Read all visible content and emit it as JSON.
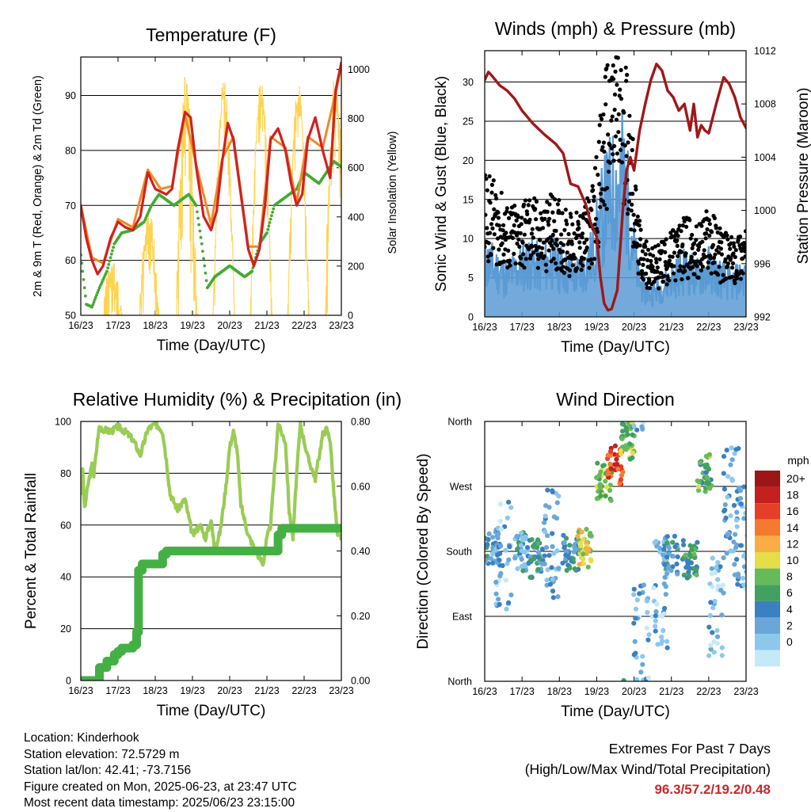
{
  "colors": {
    "temp2m": "#d32020",
    "temp9m": "#f08a24",
    "dewpoint": "#44aa33",
    "solar": "#ffd452",
    "wind": "#5b9bd5",
    "gust": "#000000",
    "pressure": "#a01818",
    "rh": "#99cc55",
    "precip": "#44b044",
    "speed_scale": [
      "#c6e9fa",
      "#8cc8ee",
      "#6aa7d8",
      "#3b80c0",
      "#42a060",
      "#67ba5a",
      "#e4de48",
      "#f9ad44",
      "#f47a30",
      "#e63f28",
      "#c4201f",
      "#9c1616"
    ]
  },
  "chart_data": [
    {
      "id": "temperature",
      "type": "line",
      "title": "Temperature (F)",
      "xlabel": "Time (Day/UTC)",
      "ylabel": "2m & 9m T (Red, Orange) & 2m Td (Green)",
      "y2label": "Solar Insolation (Yellow)",
      "xticks": [
        "16/23",
        "17/23",
        "18/23",
        "19/23",
        "20/23",
        "21/23",
        "22/23",
        "23/23"
      ],
      "xlim": [
        0,
        7
      ],
      "ylim": [
        50,
        97
      ],
      "y2lim": [
        0,
        1050
      ],
      "yticks": [
        50,
        60,
        70,
        80,
        90
      ],
      "y2ticks": [
        0,
        200,
        400,
        600,
        800,
        1000
      ],
      "series": [
        {
          "key": "temp2m",
          "color_key": "temp2m",
          "axis": "left",
          "x": [
            0,
            0.15,
            0.3,
            0.45,
            0.6,
            0.8,
            1.0,
            1.2,
            1.4,
            1.6,
            1.8,
            2.0,
            2.15,
            2.3,
            2.45,
            2.6,
            2.8,
            2.95,
            3.1,
            3.3,
            3.5,
            3.65,
            3.8,
            3.95,
            4.1,
            4.3,
            4.5,
            4.65,
            4.8,
            4.95,
            5.1,
            5.3,
            5.5,
            5.65,
            5.8,
            5.95,
            6.1,
            6.3,
            6.5,
            6.7,
            6.85,
            7.0
          ],
          "y": [
            70,
            64,
            60,
            57.5,
            59,
            64,
            67,
            66,
            65.5,
            68,
            76,
            73,
            72.5,
            72,
            73,
            80,
            87,
            86,
            77,
            68,
            65.5,
            69,
            78,
            85,
            82,
            72,
            62,
            59,
            62,
            70,
            82,
            84,
            80,
            74,
            70,
            72,
            82,
            86,
            80,
            75,
            91,
            96
          ]
        },
        {
          "key": "temp9m",
          "color_key": "temp9m",
          "axis": "left",
          "x": [
            0,
            0.3,
            0.6,
            1.0,
            1.4,
            1.8,
            2.15,
            2.45,
            2.8,
            3.1,
            3.5,
            3.8,
            4.1,
            4.5,
            4.8,
            5.1,
            5.5,
            5.8,
            6.1,
            6.5,
            6.85,
            7.0
          ],
          "y": [
            70,
            60.5,
            59.5,
            67.5,
            66,
            76.5,
            73,
            73.5,
            86.5,
            77.5,
            66.5,
            78.5,
            82.5,
            62.5,
            62.5,
            82.5,
            80.5,
            70.5,
            82.5,
            80.5,
            90.5,
            95.5
          ]
        },
        {
          "key": "dewpoint",
          "color_key": "dewpoint",
          "axis": "left",
          "x": [
            0,
            0.15,
            0.3,
            0.5,
            0.7,
            0.9,
            1.1,
            1.4,
            1.7,
            1.9,
            2.1,
            2.3,
            2.5,
            2.7,
            2.9,
            3.1,
            3.25,
            3.4,
            3.6,
            3.8,
            4.0,
            4.2,
            4.4,
            4.6,
            4.8,
            5.0,
            5.2,
            5.4,
            5.6,
            5.8,
            6.0,
            6.2,
            6.4,
            6.6,
            6.8,
            7.0
          ],
          "y": [
            61,
            52,
            51.5,
            55,
            58,
            63,
            65,
            65.5,
            67,
            70,
            72,
            71,
            70,
            71,
            72,
            70,
            63,
            55,
            57,
            58,
            59,
            58,
            57,
            58,
            63,
            65,
            70,
            71,
            72,
            73,
            76,
            75,
            74,
            76,
            78,
            77
          ]
        },
        {
          "key": "solar",
          "color_key": "solar",
          "axis": "right",
          "days": [
            {
              "start": 0.54,
              "peak": 230,
              "jitter": 140
            },
            {
              "start": 1.54,
              "peak": 420,
              "jitter": 150
            },
            {
              "start": 2.54,
              "peak": 1010,
              "jitter": 300
            },
            {
              "start": 3.54,
              "peak": 960,
              "jitter": 120
            },
            {
              "start": 4.54,
              "peak": 970,
              "jitter": 120
            },
            {
              "start": 5.54,
              "peak": 960,
              "jitter": 120
            },
            {
              "start": 6.54,
              "peak": 990,
              "jitter": 200
            }
          ]
        }
      ]
    },
    {
      "id": "winds",
      "type": "line",
      "title": "Winds (mph) & Pressure (mb)",
      "xlabel": "Time (Day/UTC)",
      "ylabel": "Sonic Wind & Gust (Blue, Black)",
      "y2label": "Station Pressure (Maroon)",
      "xticks": [
        "16/23",
        "17/23",
        "18/23",
        "19/23",
        "20/23",
        "21/23",
        "22/23",
        "23/23"
      ],
      "xlim": [
        0,
        7
      ],
      "ylim": [
        0,
        34
      ],
      "y2lim": [
        992,
        1012
      ],
      "yticks": [
        0,
        5,
        10,
        15,
        20,
        25,
        30
      ],
      "y2ticks": [
        992,
        996,
        1000,
        1004,
        1008,
        1012
      ],
      "series": [
        {
          "key": "wind",
          "color_key": "wind",
          "axis": "left",
          "type": "area",
          "x": [
            0,
            0.3,
            0.6,
            0.9,
            1.2,
            1.5,
            1.8,
            2.1,
            2.4,
            2.7,
            2.9,
            3.1,
            3.3,
            3.5,
            3.7,
            3.9,
            4.1,
            4.3,
            4.5,
            4.8,
            5.1,
            5.4,
            5.7,
            6.0,
            6.3,
            6.6,
            6.9,
            7.0
          ],
          "y": [
            7,
            6,
            5,
            6,
            7,
            6,
            7,
            6,
            5,
            6,
            8,
            12,
            15,
            16,
            18,
            12,
            5,
            3,
            3,
            4,
            5,
            6,
            5,
            6,
            5,
            4,
            5,
            5
          ]
        },
        {
          "key": "gust",
          "color_key": "gust",
          "axis": "left",
          "type": "scatter",
          "x": [
            0,
            0.3,
            0.6,
            0.9,
            1.2,
            1.5,
            1.8,
            2.1,
            2.4,
            2.7,
            2.9,
            3.1,
            3.3,
            3.5,
            3.7,
            3.9,
            4.1,
            4.3,
            4.5,
            4.8,
            5.1,
            5.4,
            5.7,
            6.0,
            6.3,
            6.6,
            6.9,
            7.0
          ],
          "y": [
            13,
            12,
            10,
            10,
            11,
            10,
            11,
            10,
            9,
            10,
            12,
            18,
            24,
            25,
            26,
            20,
            9,
            7,
            6,
            7,
            8,
            9,
            8,
            10,
            8,
            7,
            8,
            8
          ]
        },
        {
          "key": "pressure",
          "color_key": "pressure",
          "axis": "right",
          "x": [
            0,
            0.1,
            0.2,
            0.4,
            0.6,
            0.8,
            1.0,
            1.3,
            1.6,
            1.9,
            2.1,
            2.3,
            2.5,
            2.7,
            2.85,
            3.0,
            3.1,
            3.2,
            3.3,
            3.4,
            3.55,
            3.7,
            3.8,
            3.9,
            4.0,
            4.15,
            4.3,
            4.45,
            4.6,
            4.75,
            4.9,
            5.05,
            5.2,
            5.35,
            5.5,
            5.6,
            5.7,
            5.8,
            5.9,
            6.0,
            6.2,
            6.4,
            6.55,
            6.7,
            6.85,
            7.0
          ],
          "y": [
            1009.8,
            1010.4,
            1010.1,
            1009.4,
            1009,
            1008.4,
            1007.5,
            1006.5,
            1005.7,
            1005,
            1004.3,
            1002,
            1001.8,
            1000.5,
            999,
            998,
            995,
            993,
            992.5,
            992.6,
            994,
            1000,
            1003,
            1004,
            1003,
            1006,
            1008,
            1009.8,
            1011,
            1010.5,
            1009,
            1008.5,
            1007.5,
            1008,
            1006,
            1008,
            1005.5,
            1006.4,
            1006,
            1005.8,
            1008,
            1010,
            1009.5,
            1008.5,
            1007,
            1006.2
          ]
        }
      ]
    },
    {
      "id": "humidity",
      "type": "line",
      "title": "Relative Humidity (%) & Precipitation (in)",
      "xlabel": "Time (Day/UTC)",
      "ylabel": "Percent & Total Rainfall",
      "xticks": [
        "16/23",
        "17/23",
        "18/23",
        "19/23",
        "20/23",
        "21/23",
        "22/23",
        "23/23"
      ],
      "xlim": [
        0,
        7
      ],
      "ylim": [
        0,
        100
      ],
      "y2lim": [
        0,
        0.8
      ],
      "yticks": [
        0,
        20,
        40,
        60,
        80,
        100
      ],
      "y2ticks": [
        "0.00",
        "0.20",
        "0.40",
        "0.60",
        "0.80"
      ],
      "series": [
        {
          "key": "rh",
          "color_key": "rh",
          "axis": "left",
          "x": [
            0,
            0.05,
            0.1,
            0.2,
            0.3,
            0.35,
            0.45,
            0.5,
            0.6,
            0.8,
            1.0,
            1.2,
            1.4,
            1.6,
            1.8,
            2.0,
            2.1,
            2.2,
            2.3,
            2.4,
            2.6,
            2.8,
            3.0,
            3.2,
            3.35,
            3.5,
            3.6,
            3.75,
            3.9,
            4.0,
            4.1,
            4.2,
            4.3,
            4.5,
            4.7,
            4.9,
            5.0,
            5.1,
            5.2,
            5.3,
            5.5,
            5.6,
            5.7,
            5.8,
            5.9,
            6.1,
            6.3,
            6.5,
            6.6,
            6.7,
            6.8,
            6.9,
            7.0
          ],
          "y": [
            72,
            82,
            66,
            76,
            83,
            79,
            93,
            98,
            97,
            96,
            98,
            96,
            93,
            87,
            97,
            99,
            98,
            96,
            85,
            72,
            66,
            70,
            56,
            60,
            55,
            62,
            50,
            58,
            75,
            90,
            96,
            89,
            68,
            56,
            50,
            45,
            55,
            60,
            80,
            99,
            92,
            65,
            55,
            80,
            99,
            86,
            78,
            95,
            97,
            93,
            72,
            56,
            55
          ]
        },
        {
          "key": "precip",
          "color_key": "precip",
          "axis": "right",
          "type": "step",
          "x": [
            0,
            0.45,
            0.5,
            0.7,
            0.9,
            1.0,
            1.1,
            1.3,
            1.4,
            1.5,
            1.55,
            1.65,
            1.85,
            2.2,
            2.3,
            2.5,
            3.0,
            3.5,
            4.0,
            4.5,
            5.0,
            5.2,
            5.3,
            5.4,
            5.5,
            6.0,
            6.5,
            7.0
          ],
          "y": [
            0,
            0,
            0.04,
            0.06,
            0.08,
            0.09,
            0.1,
            0.1,
            0.11,
            0.15,
            0.34,
            0.36,
            0.36,
            0.39,
            0.4,
            0.4,
            0.4,
            0.4,
            0.4,
            0.4,
            0.4,
            0.4,
            0.45,
            0.47,
            0.47,
            0.47,
            0.47,
            0.47
          ]
        }
      ]
    },
    {
      "id": "direction",
      "type": "scatter",
      "title": "Wind Direction",
      "xlabel": "Time (Day/UTC)",
      "ylabel": "Direction (Colored By Speed)",
      "xticks": [
        "16/23",
        "17/23",
        "18/23",
        "19/23",
        "20/23",
        "21/23",
        "22/23",
        "23/23"
      ],
      "xlim": [
        0,
        7
      ],
      "ylim": [
        0,
        360
      ],
      "yticks": [
        "North",
        "East",
        "South",
        "West",
        "North"
      ],
      "legend_title": "mph",
      "legend_labels": [
        "20+",
        "18",
        "16",
        "14",
        "12",
        "10",
        "8",
        "6",
        "4",
        "2",
        "0"
      ],
      "legend_placement": "right",
      "clusters": [
        {
          "t": 0.2,
          "dir": 185,
          "speed": 5
        },
        {
          "t": 0.5,
          "dir": 175,
          "speed": 3
        },
        {
          "t": 1.0,
          "dir": 180,
          "speed": 5
        },
        {
          "t": 1.4,
          "dir": 170,
          "speed": 6
        },
        {
          "t": 1.8,
          "dir": 190,
          "speed": 4
        },
        {
          "t": 2.3,
          "dir": 180,
          "speed": 6
        },
        {
          "t": 2.7,
          "dir": 185,
          "speed": 12
        },
        {
          "t": 3.2,
          "dir": 275,
          "speed": 10
        },
        {
          "t": 3.5,
          "dir": 300,
          "speed": 18
        },
        {
          "t": 3.85,
          "dir": 335,
          "speed": 10
        },
        {
          "t": 4.2,
          "dir": 60,
          "speed": 3
        },
        {
          "t": 4.7,
          "dir": 120,
          "speed": 3
        },
        {
          "t": 5.0,
          "dir": 175,
          "speed": 5
        },
        {
          "t": 5.5,
          "dir": 170,
          "speed": 8
        },
        {
          "t": 5.9,
          "dir": 290,
          "speed": 9
        },
        {
          "t": 6.2,
          "dir": 100,
          "speed": 3
        },
        {
          "t": 6.6,
          "dir": 250,
          "speed": 4
        },
        {
          "t": 6.9,
          "dir": 200,
          "speed": 3
        }
      ]
    }
  ],
  "info": {
    "location": "Location: Kinderhook",
    "elevation": "Station elevation: 72.5729 m",
    "latlon": "Station lat/lon: 42.41; -73.7156",
    "created": "Figure created on Mon, 2025-06-23, at 23:47 UTC",
    "recent": "Most recent data timestamp: 2025/06/23 23:15:00"
  },
  "extremes": {
    "line1": "Extremes For Past 7 Days",
    "line2": "(High/Low/Max Wind/Total Precipitation)",
    "values": "96.3/57.2/19.2/0.48"
  }
}
